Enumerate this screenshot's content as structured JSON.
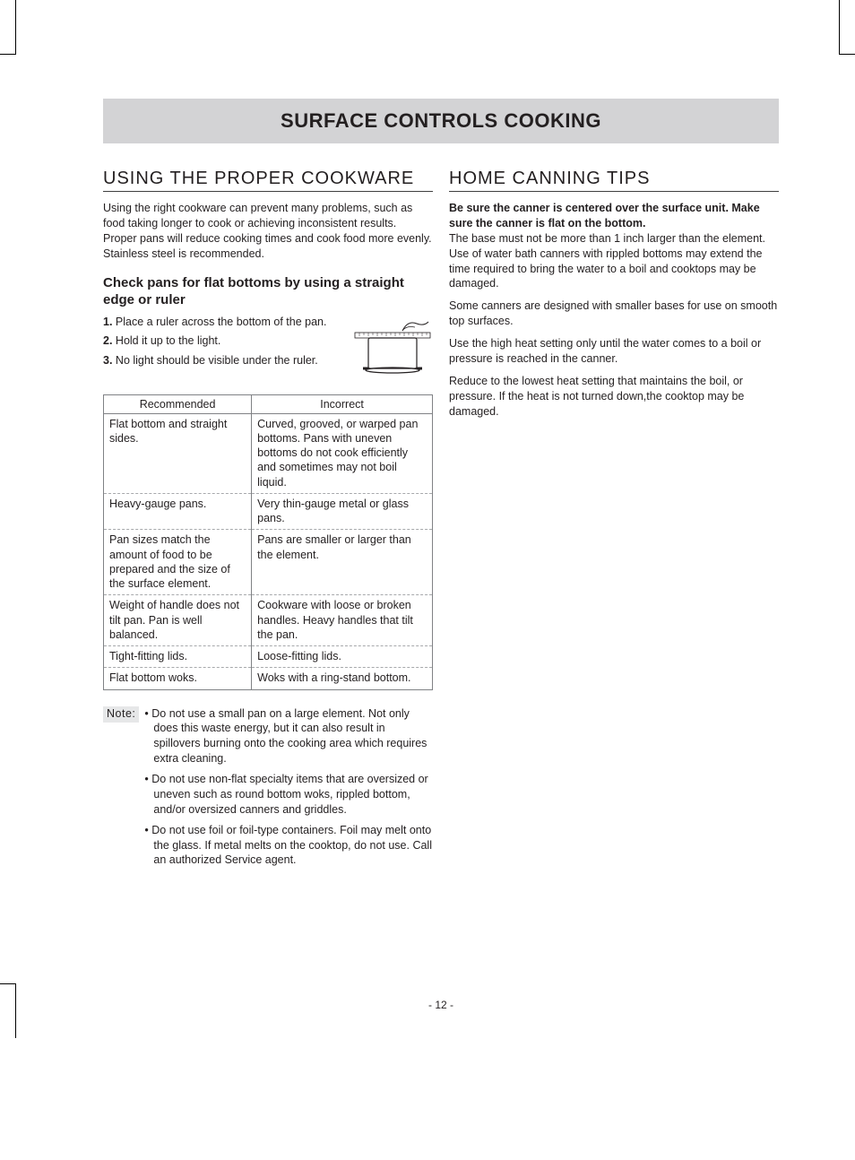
{
  "title": "SURFACE CONTROLS COOKING",
  "page_number": "- 12 -",
  "colors": {
    "title_bg": "#d3d3d5",
    "text": "#231f20",
    "table_border": "#808285",
    "note_bg": "#e6e7e8"
  },
  "left": {
    "heading": "USING THE PROPER COOKWARE",
    "intro": "Using the right cookware can prevent many problems, such as food taking longer to cook or achieving inconsistent results. Proper pans will reduce cooking times and cook food more evenly. Stainless steel is recommended.",
    "sub_heading": "Check pans for flat bottoms by using a straight edge or ruler",
    "steps": [
      {
        "n": "1.",
        "t": "Place a ruler across the bottom of the pan."
      },
      {
        "n": "2.",
        "t": "Hold it up to the light."
      },
      {
        "n": "3.",
        "t": "No light should be visible under the ruler."
      }
    ],
    "table": {
      "headers": [
        "Recommended",
        "Incorrect"
      ],
      "rows": [
        [
          "Flat bottom and straight sides.",
          "Curved, grooved, or warped pan bottoms. Pans with uneven bottoms do not cook efficiently and sometimes may not boil liquid."
        ],
        [
          "Heavy-gauge pans.",
          "Very thin-gauge metal or glass pans."
        ],
        [
          "Pan sizes match the amount of food to be prepared and the size of the surface element.",
          "Pans are smaller or larger than the element."
        ],
        [
          "Weight of handle does not tilt pan. Pan is well balanced.",
          "Cookware with loose or broken handles. Heavy handles that tilt the pan."
        ],
        [
          "Tight-fitting lids.",
          "Loose-fitting lids."
        ],
        [
          "Flat bottom woks.",
          "Woks with a ring-stand bottom."
        ]
      ],
      "col_widths": [
        "45%",
        "55%"
      ]
    },
    "note_label": "Note:",
    "notes": [
      "• Do not use a small pan on a large element. Not only does this waste energy, but it can also result in spillovers burning onto the cooking area which requires extra cleaning.",
      "• Do not use non-flat specialty items that are oversized or uneven such as round bottom woks, rippled bottom, and/or oversized canners and griddles.",
      "• Do not use foil or foil-type containers. Foil may melt onto the glass. If metal melts on the cooktop, do not use. Call an authorized Service agent."
    ]
  },
  "right": {
    "heading": "HOME CANNING TIPS",
    "bold_intro": "Be sure the canner is centered over the surface unit. Make sure the canner is flat on the bottom.",
    "paras": [
      "The base must not be more than 1 inch larger than the element. Use of water bath canners with rippled bottoms may extend the time required to bring the water to a boil and cooktops may be damaged.",
      "Some canners are designed with smaller bases for use on smooth top surfaces.",
      "Use the high heat setting only until the water comes to a boil or pressure is reached in the canner.",
      "Reduce to the lowest heat setting that maintains the boil, or pressure. If the heat is not turned down,the cooktop may be damaged."
    ]
  }
}
